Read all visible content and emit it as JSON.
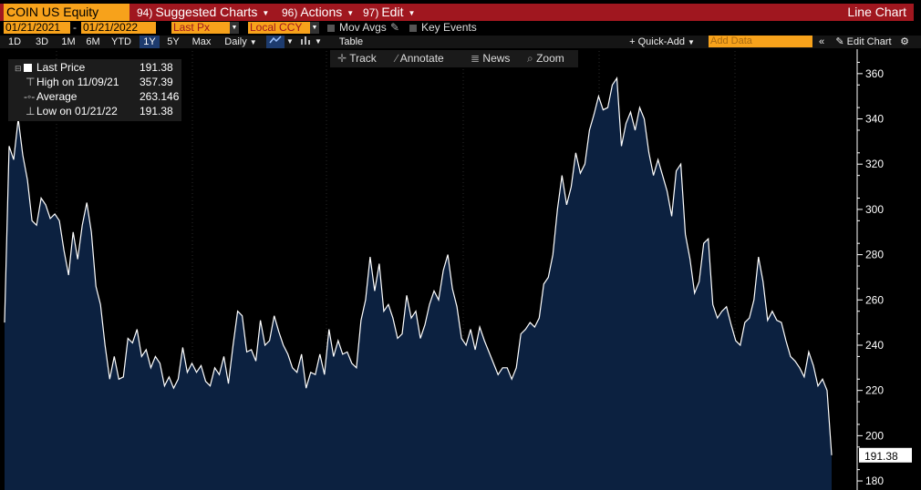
{
  "header": {
    "security": "COIN US Equity",
    "menus": [
      {
        "num": "94)",
        "label": "Suggested Charts"
      },
      {
        "num": "96)",
        "label": "Actions"
      },
      {
        "num": "97)",
        "label": "Edit"
      }
    ],
    "chart_name": "Line Chart"
  },
  "controls": {
    "start_date": "01/21/2021",
    "date_sep": "-",
    "end_date": "01/21/2022",
    "field": "Last Px",
    "currency": "Local CCY",
    "mov_avgs": "Mov Avgs",
    "key_events": "Key Events"
  },
  "ranges": [
    "1D",
    "3D",
    "1M",
    "6M",
    "YTD",
    "1Y",
    "5Y",
    "Max"
  ],
  "active_range": "1Y",
  "frequency": "Daily",
  "table_label": "Table",
  "quick_add": "Quick-Add",
  "add_data_placeholder": "Add Data",
  "edit_chart": "Edit Chart",
  "tools": [
    "Track",
    "Annotate",
    "News",
    "Zoom"
  ],
  "legend": [
    {
      "label": "Last Price",
      "value": "191.38"
    },
    {
      "label": "High on 11/09/21",
      "value": "357.39"
    },
    {
      "label": "Average",
      "value": "263.146"
    },
    {
      "label": "Low on 01/21/22",
      "value": "191.38"
    }
  ],
  "colors": {
    "line": "#ffffff",
    "fill": "#0c2140",
    "accent": "#f7a21b",
    "header": "#a0171f"
  },
  "chart_data": {
    "type": "area",
    "title": "",
    "xlabel": "",
    "ylabel": "",
    "ylim": [
      176,
      370
    ],
    "yticks": [
      180,
      200,
      220,
      240,
      260,
      280,
      300,
      320,
      340,
      360
    ],
    "last_value_label": "191.38",
    "series": [
      {
        "values": [
          250,
          328,
          322,
          340,
          324,
          313,
          295,
          293,
          305,
          302,
          296,
          298,
          295,
          282,
          271,
          290,
          278,
          293,
          303,
          290,
          266,
          258,
          240,
          225,
          235,
          225,
          226,
          243,
          241,
          247,
          235,
          238,
          230,
          235,
          232,
          222,
          226,
          221,
          225,
          239,
          228,
          232,
          228,
          231,
          224,
          222,
          230,
          227,
          235,
          223,
          240,
          255,
          253,
          237,
          238,
          233,
          251,
          240,
          242,
          253,
          246,
          240,
          236,
          230,
          228,
          236,
          221,
          228,
          227,
          236,
          227,
          247,
          235,
          242,
          236,
          237,
          232,
          230,
          251,
          260,
          279,
          264,
          276,
          255,
          258,
          252,
          243,
          245,
          262,
          252,
          255,
          243,
          249,
          258,
          264,
          260,
          273,
          280,
          265,
          257,
          243,
          240,
          247,
          238,
          248,
          242,
          237,
          232,
          227,
          230,
          230,
          225,
          230,
          245,
          247,
          250,
          248,
          252,
          267,
          270,
          280,
          300,
          315,
          302,
          310,
          325,
          316,
          320,
          335,
          342,
          350,
          344,
          345,
          355,
          358,
          328,
          338,
          343,
          335,
          345,
          340,
          325,
          315,
          322,
          315,
          308,
          297,
          317,
          320,
          289,
          278,
          263,
          268,
          285,
          287,
          258,
          252,
          255,
          257,
          249,
          242,
          240,
          250,
          252,
          260,
          279,
          268,
          251,
          255,
          251,
          250,
          242,
          235,
          233,
          230,
          226,
          237,
          231,
          222,
          225,
          220,
          191.38
        ]
      }
    ]
  }
}
